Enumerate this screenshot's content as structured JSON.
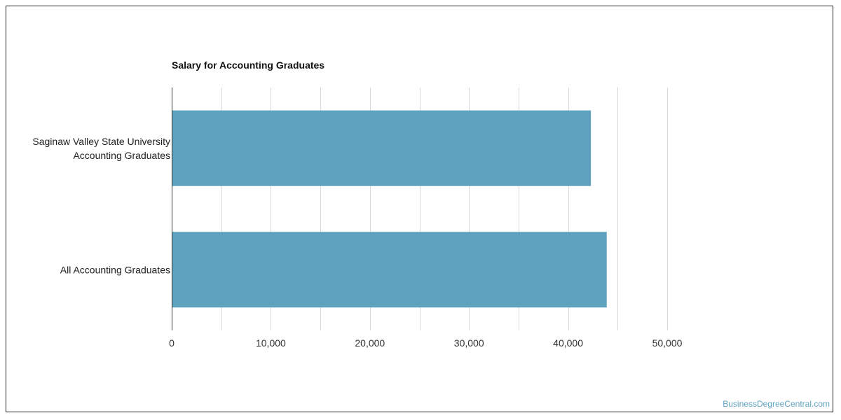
{
  "chart_data": {
    "type": "bar",
    "orientation": "horizontal",
    "title": "Salary for Accounting Graduates",
    "categories": [
      [
        "Saginaw Valley State University",
        "Accounting Graduates"
      ],
      [
        "All Accounting Graduates"
      ]
    ],
    "values": [
      42300,
      43900
    ],
    "xlim": [
      0,
      50000
    ],
    "ticks": [
      0,
      10000,
      20000,
      30000,
      40000,
      50000
    ],
    "tick_labels": [
      "0",
      "10,000",
      "20,000",
      "30,000",
      "40,000",
      "50,000"
    ],
    "grid": true,
    "bar_color": "#5ea2bd",
    "grid_color": "#d9d9d9",
    "axis_color": "#333333"
  },
  "watermark": "BusinessDegreeCentral.com"
}
